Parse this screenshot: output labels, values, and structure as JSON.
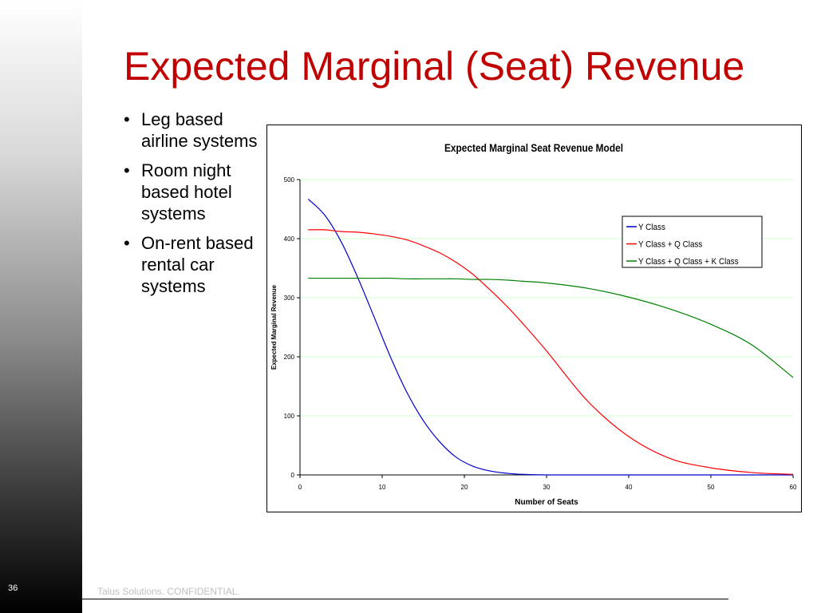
{
  "slide": {
    "title": "Expected Marginal (Seat) Revenue",
    "number": "36",
    "footer": "Talus Solutions. CONFIDENTIAL."
  },
  "bullets": [
    "Leg based airline systems",
    "Room night based hotel systems",
    "On-rent based rental car systems"
  ],
  "colors": {
    "title": "#c00000",
    "grid": "#ccffcc"
  },
  "chart_data": {
    "type": "line",
    "title": "Expected Marginal Seat Revenue Model",
    "xlabel": "Number of Seats",
    "ylabel": "Expected Marginal Revenue",
    "xlim": [
      0,
      60
    ],
    "ylim": [
      0,
      500
    ],
    "xticks": [
      "0",
      "10",
      "20",
      "30",
      "40",
      "50",
      "60"
    ],
    "yticks": [
      "0",
      "100",
      "200",
      "300",
      "400",
      "500"
    ],
    "grid": "horizontal",
    "legend_position": "top-right",
    "x": [
      1,
      3,
      5,
      7,
      9,
      11,
      13,
      15,
      17,
      19,
      21,
      23,
      25,
      27,
      30,
      35,
      40,
      45,
      50,
      55,
      60
    ],
    "series": [
      {
        "name": "Y Class",
        "color": "#0000cc",
        "values": [
          467,
          440,
          395,
          335,
          268,
          200,
          140,
          92,
          56,
          30,
          15,
          7,
          3,
          1,
          0,
          0,
          0,
          0,
          0,
          0,
          0
        ]
      },
      {
        "name": "Y Class + Q Class",
        "color": "#ff0000",
        "values": [
          415,
          415,
          412,
          411,
          408,
          404,
          398,
          388,
          376,
          360,
          340,
          315,
          288,
          258,
          210,
          125,
          65,
          28,
          12,
          4,
          1
        ]
      },
      {
        "name": "Y Class + Q Class + K Class",
        "color": "#008000",
        "values": [
          333,
          333,
          333,
          333,
          333,
          333,
          332,
          332,
          332,
          332,
          331,
          331,
          330,
          328,
          325,
          316,
          301,
          281,
          255,
          220,
          165
        ]
      }
    ]
  }
}
